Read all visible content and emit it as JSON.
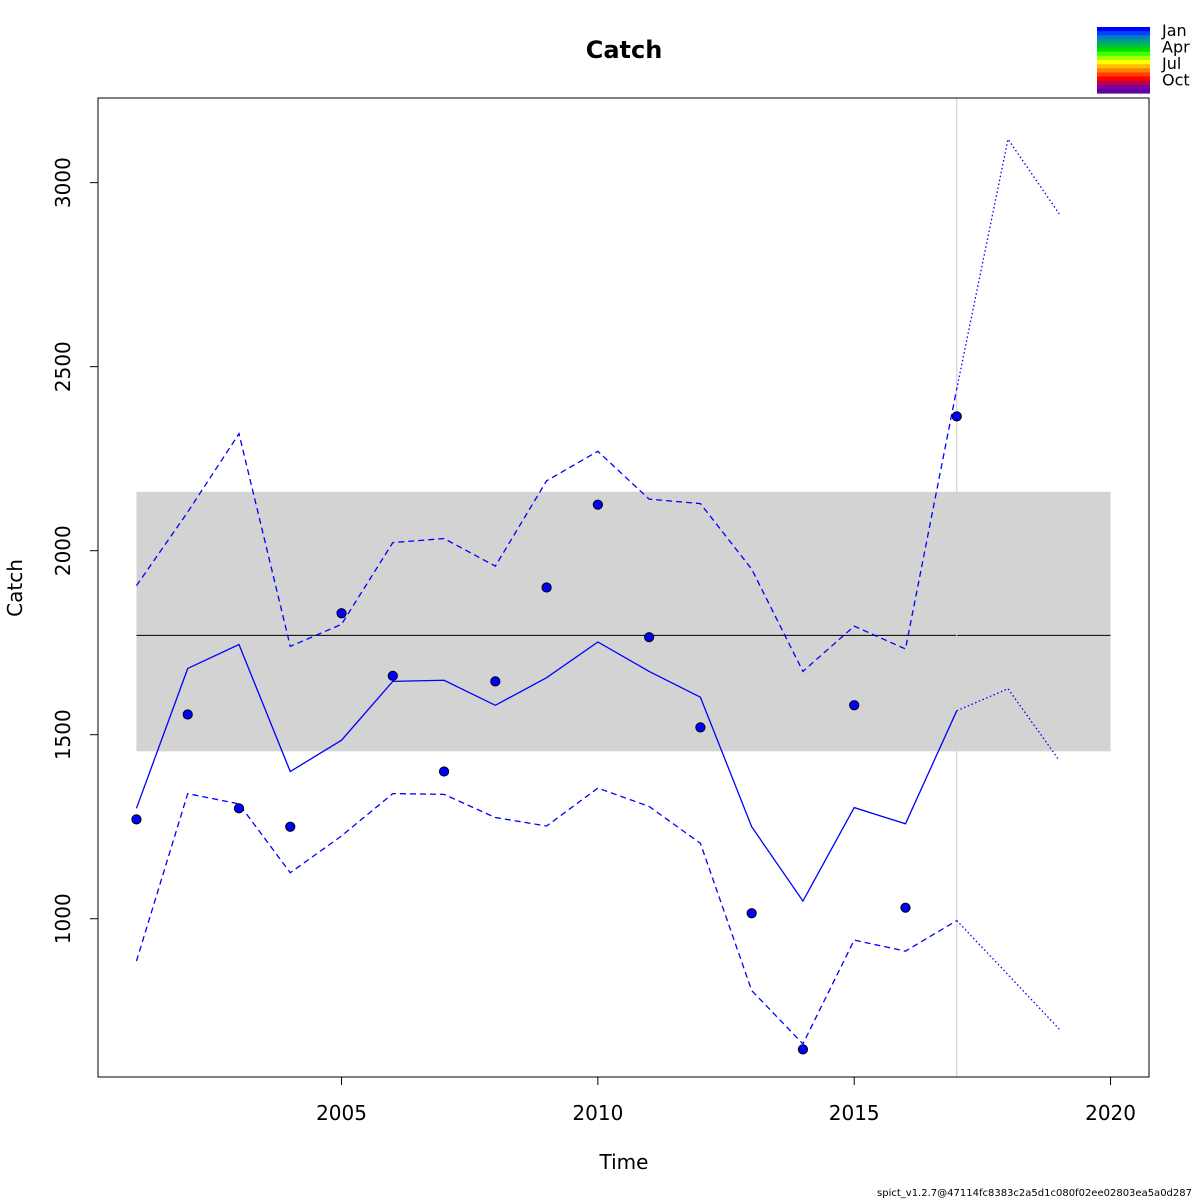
{
  "chart_data": {
    "type": "line",
    "title": "Catch",
    "xlabel": "Time",
    "ylabel": "Catch",
    "xlim": [
      2000.25,
      2020.75
    ],
    "ylim": [
      570,
      3230
    ],
    "xticks": [
      2005,
      2010,
      2015,
      2020
    ],
    "yticks": [
      1000,
      1500,
      2000,
      2500,
      3000
    ],
    "grid": false,
    "reference_line": {
      "value": 1770,
      "band": [
        1455,
        2160
      ],
      "band_color": "#d3d3d3"
    },
    "vertical_marker_x": 2017,
    "observed_points": {
      "x": [
        2001,
        2002,
        2003,
        2004,
        2005,
        2006,
        2007,
        2008,
        2009,
        2010,
        2011,
        2012,
        2013,
        2014,
        2015,
        2016,
        2017
      ],
      "y": [
        1270,
        1555,
        1300,
        1250,
        1830,
        1660,
        1400,
        1645,
        1900,
        2125,
        1765,
        1520,
        1015,
        645,
        1580,
        1030,
        2365
      ]
    },
    "series": [
      {
        "style": "solid",
        "x": [
          2001,
          2002,
          2003,
          2004,
          2005,
          2006,
          2007,
          2008,
          2009,
          2010,
          2011,
          2012,
          2013,
          2014,
          2015,
          2016,
          2017
        ],
        "values": [
          1300,
          1680,
          1745,
          1400,
          1485,
          1645,
          1648,
          1580,
          1655,
          1752,
          1672,
          1602,
          1250,
          1048,
          1302,
          1258,
          1565
        ]
      },
      {
        "style": "dashed",
        "x": [
          2001,
          2002,
          2003,
          2004,
          2005,
          2006,
          2007,
          2008,
          2009,
          2010,
          2011,
          2012,
          2013,
          2014,
          2015,
          2016,
          2017
        ],
        "values": [
          1905,
          2105,
          2318,
          1740,
          1800,
          2022,
          2033,
          1958,
          2190,
          2270,
          2140,
          2128,
          1950,
          1672,
          1795,
          1733,
          2440
        ]
      },
      {
        "style": "dashed",
        "x": [
          2001,
          2002,
          2003,
          2004,
          2005,
          2006,
          2007,
          2008,
          2009,
          2010,
          2011,
          2012,
          2013,
          2014,
          2015,
          2016,
          2017
        ],
        "values": [
          885,
          1340,
          1312,
          1125,
          1225,
          1340,
          1338,
          1275,
          1252,
          1355,
          1305,
          1205,
          805,
          660,
          942,
          912,
          995
        ]
      },
      {
        "style": "dotted",
        "x": [
          2017,
          2018,
          2019
        ],
        "values": [
          1565,
          1625,
          1430
        ]
      },
      {
        "style": "dotted",
        "x": [
          2017,
          2018,
          2019
        ],
        "values": [
          2440,
          3118,
          2915
        ]
      },
      {
        "style": "dotted",
        "x": [
          2017,
          2018,
          2019
        ],
        "values": [
          995,
          848,
          700
        ]
      }
    ],
    "colors": {
      "series": "#0000ff",
      "points_fill": "#0000ff",
      "axis": "#000000",
      "marker_line": "#d3d3d3"
    },
    "legend": {
      "placement": "top-right",
      "labels": [
        "Jan",
        "Apr",
        "Jul",
        "Oct"
      ],
      "gradient": [
        "#0000ff",
        "#0040ff",
        "#0080c0",
        "#00a080",
        "#00c040",
        "#00e000",
        "#40ff00",
        "#a0ff00",
        "#ffff00",
        "#ffc000",
        "#ff8000",
        "#ff4000",
        "#ff0000",
        "#c00040",
        "#8000a0",
        "#6000a0"
      ]
    }
  },
  "footer": "spict_v1.2.7@47114fc8383c2a5d1c080f02ee02803ea5a0d287"
}
